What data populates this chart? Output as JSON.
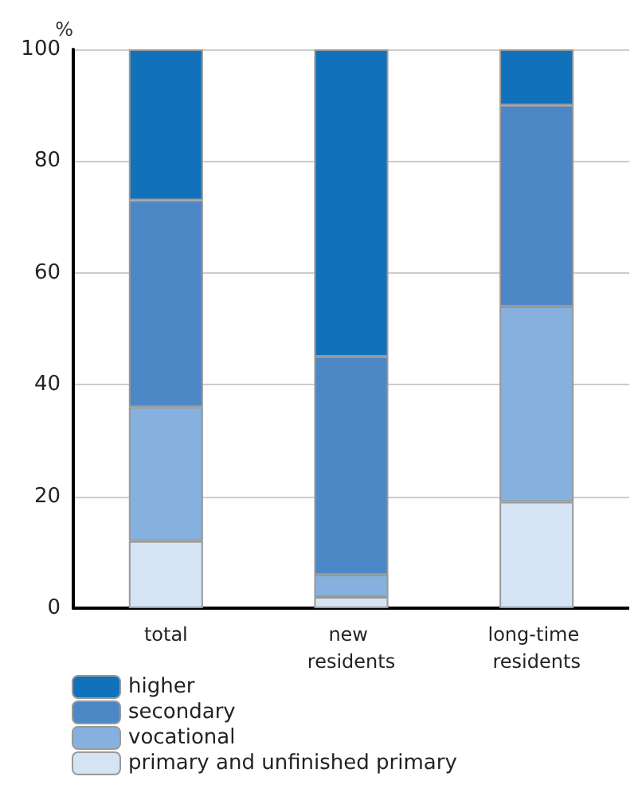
{
  "chart_data": {
    "type": "bar",
    "ylabel": "%",
    "categories": [
      "total",
      "new residents",
      "long-time residents"
    ],
    "stacked": true,
    "series": [
      {
        "name": "primary and unfinished primary",
        "color": "#d4e4f4",
        "values": [
          12,
          2,
          19
        ]
      },
      {
        "name": "vocational",
        "color": "#86b0de",
        "values": [
          24,
          4,
          35
        ]
      },
      {
        "name": "secondary",
        "color": "#4c87c6",
        "values": [
          37,
          39,
          36
        ]
      },
      {
        "name": "higher",
        "color": "#1172bb",
        "values": [
          27,
          55,
          10
        ]
      }
    ],
    "ylim": [
      0,
      100
    ],
    "yticks": [
      0,
      20,
      40,
      60,
      80,
      100
    ],
    "grid": "y",
    "legend": "bottom left"
  }
}
